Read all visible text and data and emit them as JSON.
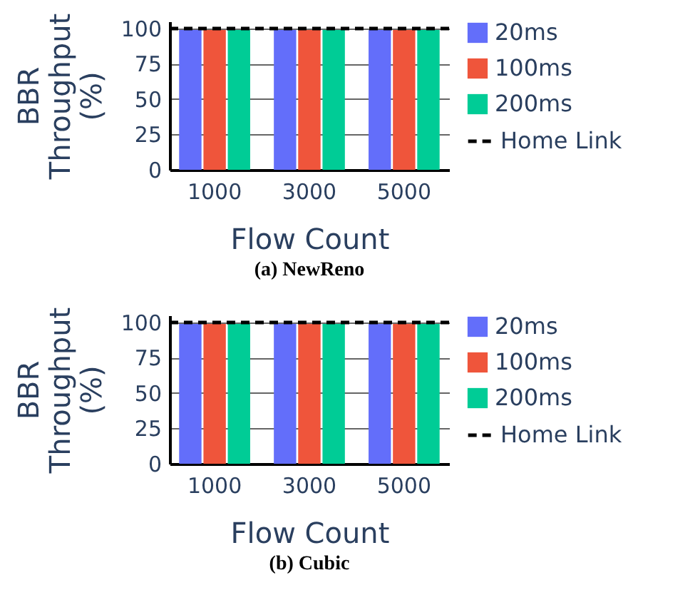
{
  "chart_data": [
    {
      "type": "bar",
      "title": "(a) NewReno",
      "xlabel": "Flow Count",
      "ylabel": "BBR Throughput (%)",
      "categories": [
        "1000",
        "3000",
        "5000"
      ],
      "series": [
        {
          "name": "20ms",
          "color": "#636efa",
          "values": [
            99,
            99,
            99
          ]
        },
        {
          "name": "100ms",
          "color": "#ef553b",
          "values": [
            99,
            99,
            99
          ]
        },
        {
          "name": "200ms",
          "color": "#00cc96",
          "values": [
            99,
            99,
            99
          ]
        }
      ],
      "ylim": [
        0,
        105
      ],
      "yticks": [
        0,
        25,
        50,
        75,
        100
      ],
      "grid": "y",
      "legend": "right",
      "ref_lines": [
        {
          "axis": "y",
          "value": 100,
          "label": "Home Link",
          "color": "#000000",
          "line_style": "dashed"
        }
      ]
    },
    {
      "type": "bar",
      "title": "(b) Cubic",
      "xlabel": "Flow Count",
      "ylabel": "BBR Throughput (%)",
      "categories": [
        "1000",
        "3000",
        "5000"
      ],
      "series": [
        {
          "name": "20ms",
          "color": "#636efa",
          "values": [
            99,
            99,
            99
          ]
        },
        {
          "name": "100ms",
          "color": "#ef553b",
          "values": [
            99,
            99,
            99
          ]
        },
        {
          "name": "200ms",
          "color": "#00cc96",
          "values": [
            99,
            99,
            99
          ]
        }
      ],
      "ylim": [
        0,
        105
      ],
      "yticks": [
        0,
        25,
        50,
        75,
        100
      ],
      "grid": "y",
      "legend": "right",
      "ref_lines": [
        {
          "axis": "y",
          "value": 100,
          "label": "Home Link",
          "color": "#000000",
          "line_style": "dashed"
        }
      ]
    }
  ]
}
